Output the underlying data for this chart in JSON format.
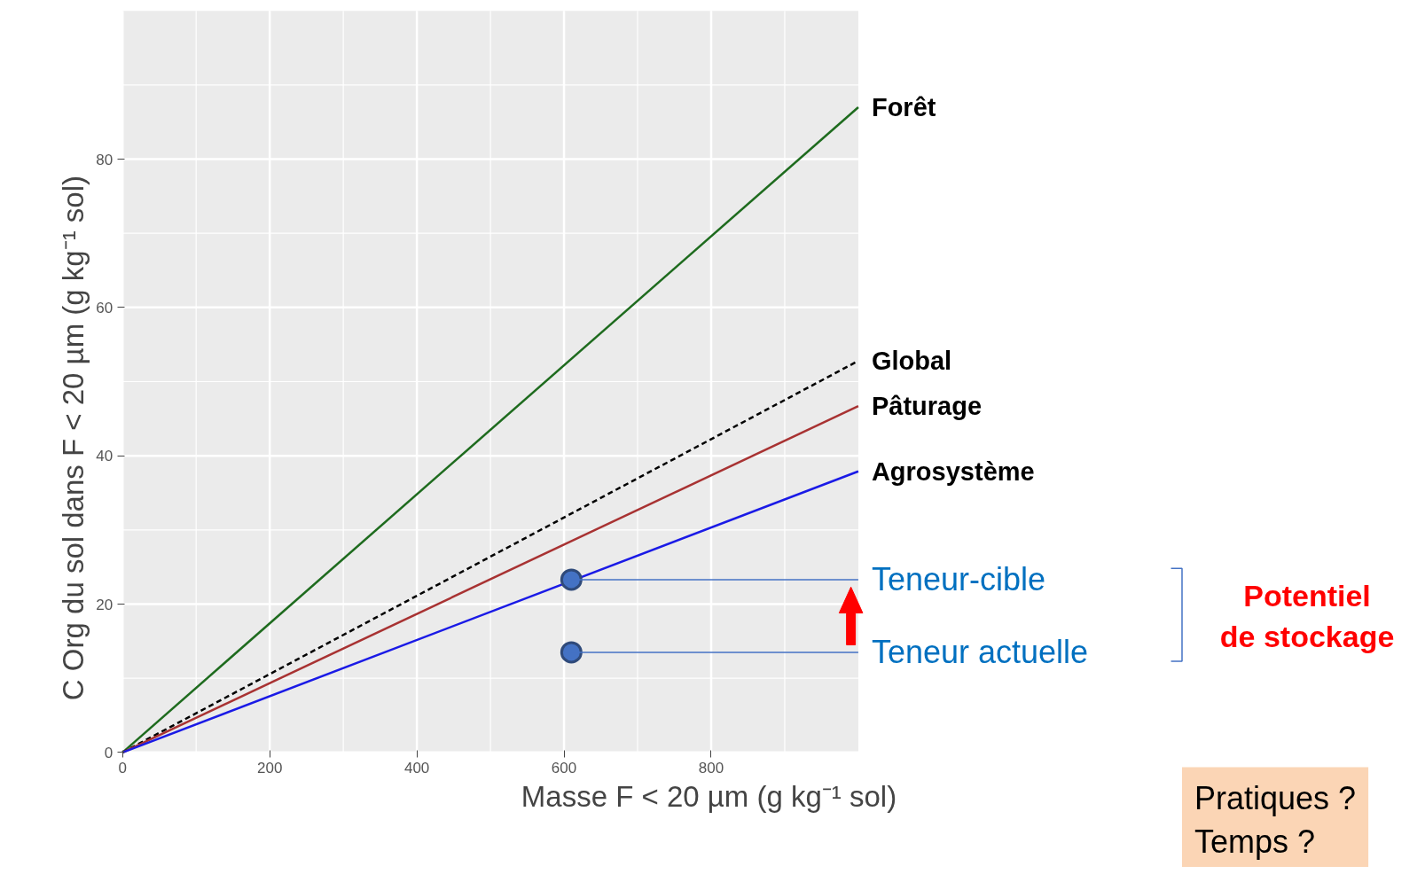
{
  "chart_data": {
    "type": "line",
    "xlabel": "Masse F < 20 µm (g kg⁻¹ sol)",
    "ylabel": "C Org du sol  dans F < 20 µm (g kg⁻¹ sol)",
    "xlim": [
      0,
      1000
    ],
    "ylim": [
      0,
      100
    ],
    "xticks": [
      0,
      200,
      400,
      600,
      800
    ],
    "yticks": [
      0,
      20,
      40,
      60,
      80
    ],
    "grid": true,
    "marker": "none",
    "line_style": "solid",
    "series": [
      {
        "name": "Forêt",
        "color": "#1e6b1e",
        "x": [
          0,
          1000
        ],
        "values": [
          0,
          87
        ]
      },
      {
        "name": "Global",
        "color": "#000000",
        "x": [
          0,
          1000
        ],
        "values": [
          0,
          52.8
        ],
        "line_style": "dashed"
      },
      {
        "name": "Pâturage",
        "color": "#a83232",
        "x": [
          0,
          1000
        ],
        "values": [
          0,
          46.7
        ]
      },
      {
        "name": "Agrosystème",
        "color": "#1a1ae6",
        "x": [
          0,
          1000
        ],
        "values": [
          0,
          37.9
        ]
      },
      {
        "type": "scatter",
        "marker": "circle",
        "color": "#4472c4",
        "x": [
          610,
          610
        ],
        "values": [
          23.3,
          13.5
        ]
      }
    ],
    "annotations": [
      {
        "text": "Teneur-cible",
        "x": 610,
        "y": 23.3
      },
      {
        "text": "Teneur actuelle",
        "x": 610,
        "y": 13.5
      },
      "Potentiel\nde stockage",
      "Pratiques ?\nTemps ?"
    ]
  }
}
